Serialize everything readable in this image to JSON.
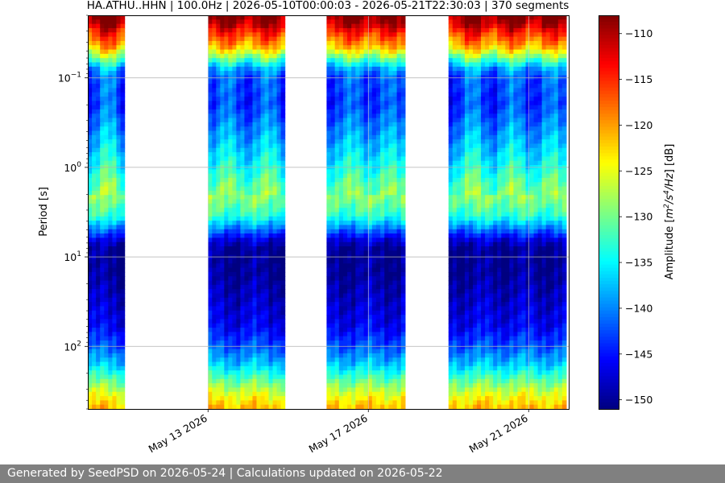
{
  "footer_text": "Generated by SeedPSD on 2026-05-24 | Calculations updated on 2026-05-22",
  "chart_data": {
    "type": "heatmap",
    "title": "HA.ATHU..HHN | 100.0Hz | 2026-05-10T00:00:03 - 2026-05-21T22:30:03 | 370 segments",
    "xlabel": "",
    "ylabel": "Period [s]",
    "colorbar_label": "Amplitude [m²/s⁴/Hz] [dB]",
    "x_range": [
      "2026-05-10",
      "2026-05-22"
    ],
    "x_ticks": [
      {
        "date": "2026-05-13",
        "label": "May 13 2026"
      },
      {
        "date": "2026-05-17",
        "label": "May 17 2026"
      },
      {
        "date": "2026-05-21",
        "label": "May 21 2026"
      }
    ],
    "y_scale": "log",
    "y_inverted": true,
    "y_range": [
      0.02,
      500
    ],
    "y_ticks": [
      {
        "value": 0.1,
        "mant": "10",
        "exp": "−1"
      },
      {
        "value": 1,
        "mant": "10",
        "exp": "0"
      },
      {
        "value": 10,
        "mant": "10",
        "exp": "1"
      },
      {
        "value": 100,
        "mant": "10",
        "exp": "2"
      }
    ],
    "grid": "horizontal",
    "colormap": "jet",
    "color_range": [
      -151,
      -108
    ],
    "colorbar_ticks": [
      -110,
      -115,
      -120,
      -125,
      -130,
      -135,
      -140,
      -145,
      -150
    ],
    "data_segments": [
      {
        "start": "2026-05-10",
        "end": "2026-05-10T22:00:00"
      },
      {
        "start": "2026-05-13",
        "end": "2026-05-14T22:00:00"
      },
      {
        "start": "2026-05-15T23:00:00",
        "end": "2026-05-17T22:00:00"
      },
      {
        "start": "2026-05-19",
        "end": "2026-05-21T22:30:00"
      }
    ],
    "amplitude_profile_db": [
      {
        "period": 0.02,
        "value": -108
      },
      {
        "period": 0.025,
        "value": -110
      },
      {
        "period": 0.03,
        "value": -114
      },
      {
        "period": 0.045,
        "value": -121
      },
      {
        "period": 0.06,
        "value": -130
      },
      {
        "period": 0.08,
        "value": -139
      },
      {
        "period": 0.1,
        "value": -142
      },
      {
        "period": 0.2,
        "value": -143
      },
      {
        "period": 0.35,
        "value": -140
      },
      {
        "period": 0.6,
        "value": -137
      },
      {
        "period": 1,
        "value": -134
      },
      {
        "period": 1.5,
        "value": -131
      },
      {
        "period": 2.2,
        "value": -129
      },
      {
        "period": 3.5,
        "value": -133
      },
      {
        "period": 5,
        "value": -141
      },
      {
        "period": 6.5,
        "value": -147
      },
      {
        "period": 8,
        "value": -150
      },
      {
        "period": 15,
        "value": -150
      },
      {
        "period": 30,
        "value": -148
      },
      {
        "period": 60,
        "value": -146
      },
      {
        "period": 100,
        "value": -142
      },
      {
        "period": 160,
        "value": -137
      },
      {
        "period": 250,
        "value": -130
      },
      {
        "period": 350,
        "value": -125
      },
      {
        "period": 500,
        "value": -121
      }
    ]
  }
}
